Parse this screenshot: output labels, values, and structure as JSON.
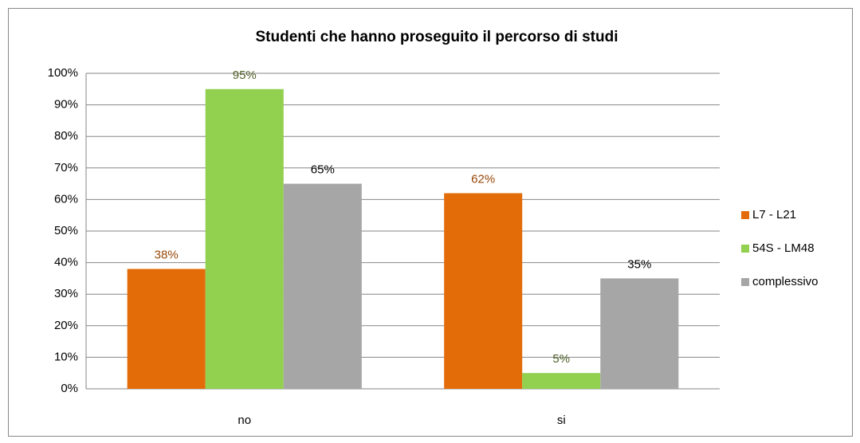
{
  "chart_data": {
    "type": "bar",
    "title": "Studenti che hanno proseguito il percorso di studi",
    "categories": [
      "no",
      "si"
    ],
    "series": [
      {
        "name": "L7 - L21",
        "color": "#e36c09",
        "label_color": "#984807",
        "values": [
          38,
          62
        ],
        "value_labels": [
          "38%",
          "62%"
        ]
      },
      {
        "name": "54S - LM48",
        "color": "#92d050",
        "label_color": "#4f6228",
        "values": [
          95,
          5
        ],
        "value_labels": [
          "95%",
          "5%"
        ]
      },
      {
        "name": "complessivo",
        "color": "#a6a6a6",
        "label_color": "#000000",
        "values": [
          65,
          35
        ],
        "value_labels": [
          "65%",
          "35%"
        ]
      }
    ],
    "ylim": [
      0,
      100
    ],
    "yticks": [
      {
        "value": 0,
        "label": "0%"
      },
      {
        "value": 10,
        "label": "10%"
      },
      {
        "value": 20,
        "label": "20%"
      },
      {
        "value": 30,
        "label": "30%"
      },
      {
        "value": 40,
        "label": "40%"
      },
      {
        "value": 50,
        "label": "50%"
      },
      {
        "value": 60,
        "label": "60%"
      },
      {
        "value": 70,
        "label": "70%"
      },
      {
        "value": 80,
        "label": "80%"
      },
      {
        "value": 90,
        "label": "90%"
      },
      {
        "value": 100,
        "label": "100%"
      }
    ],
    "grid": true,
    "legend": "right"
  }
}
